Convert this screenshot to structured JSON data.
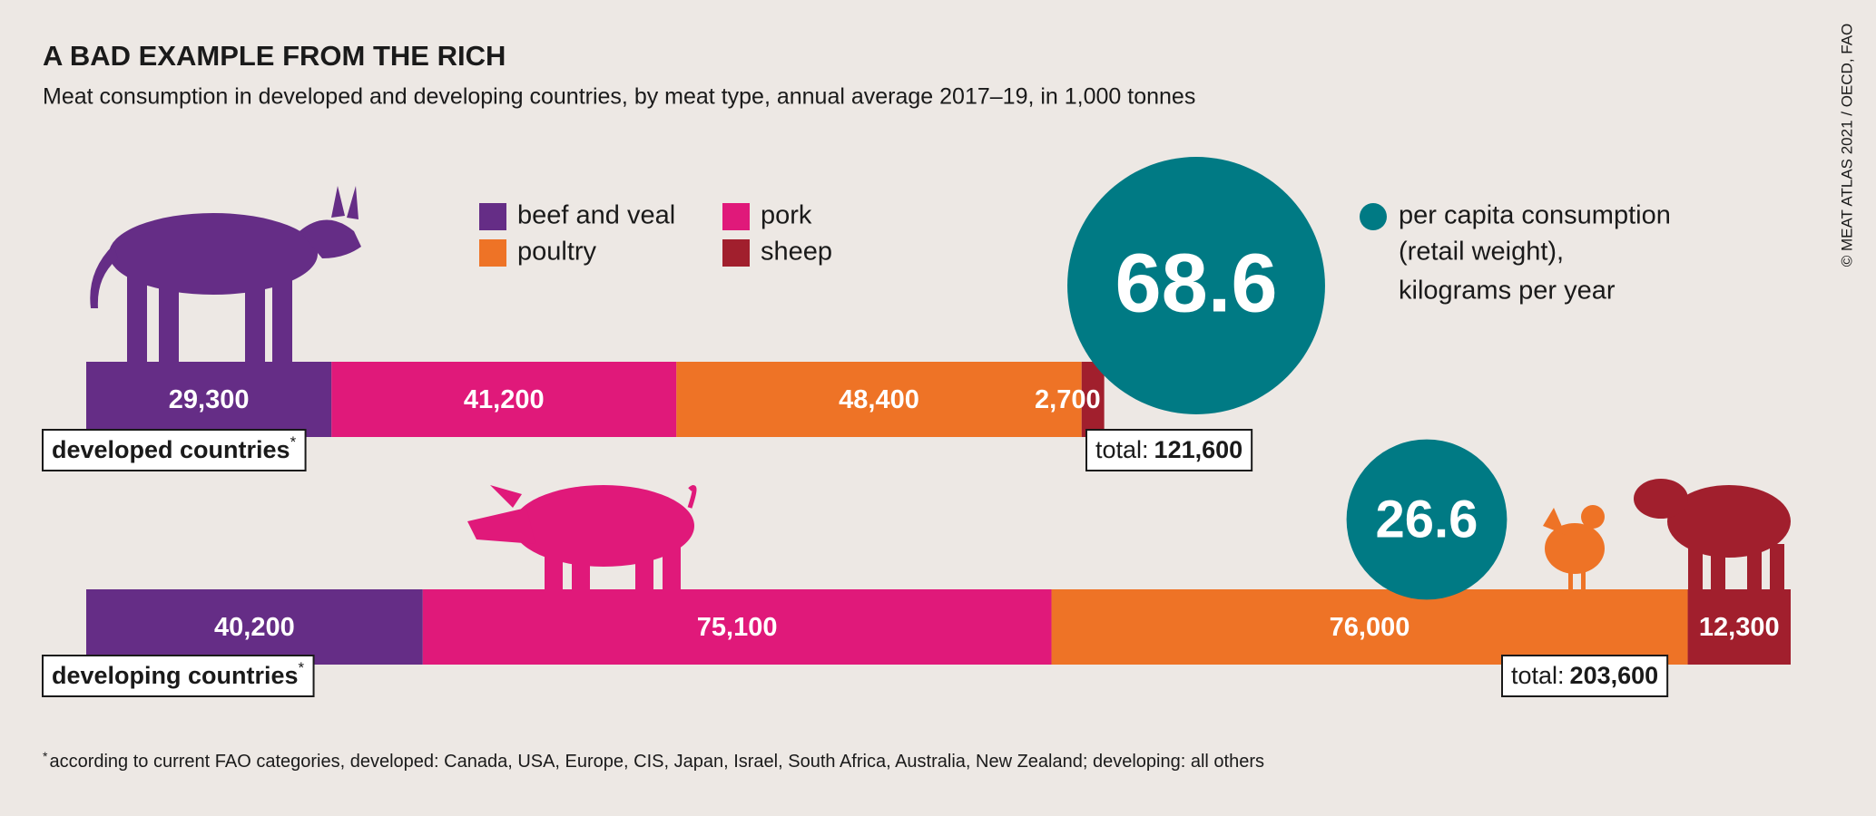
{
  "chart_data": {
    "type": "stacked-bar",
    "title": "A BAD EXAMPLE FROM THE RICH",
    "subtitle": "Meat consumption in developed and developing countries, by meat type, annual average 2017–19, in 1,000 tonnes",
    "categories": [
      "developed countries",
      "developing countries"
    ],
    "marker": "*",
    "series": [
      {
        "name": "beef and veal",
        "color": "#652d86",
        "values": [
          29300,
          40200
        ],
        "value_labels": [
          "29,300",
          "40,200"
        ]
      },
      {
        "name": "pork",
        "color": "#e0197a",
        "values": [
          41200,
          75100
        ],
        "value_labels": [
          "41,200",
          "75,100"
        ]
      },
      {
        "name": "poultry",
        "color": "#ee7326",
        "values": [
          48400,
          76000
        ],
        "value_labels": [
          "48,400",
          "76,000"
        ]
      },
      {
        "name": "sheep",
        "color": "#a11f2d",
        "values": [
          2700,
          12300
        ],
        "value_labels": [
          "2,700",
          "12,300"
        ]
      }
    ],
    "totals": {
      "prefix": "total:",
      "values": [
        121600,
        203600
      ],
      "value_labels": [
        "121,600",
        "203,600"
      ]
    },
    "per_capita": {
      "color": "#007a84",
      "values": [
        68.6,
        26.6
      ],
      "legend": [
        "per capita consumption",
        "(retail weight),",
        "kilograms per year"
      ]
    },
    "footnote": "according to current FAO categories, developed: Canada, USA, Europe, CIS, Japan, Israel, South Africa, Australia, New Zealand; developing: all others",
    "source": "© MEAT ATLAS 2021 / OECD, FAO"
  }
}
